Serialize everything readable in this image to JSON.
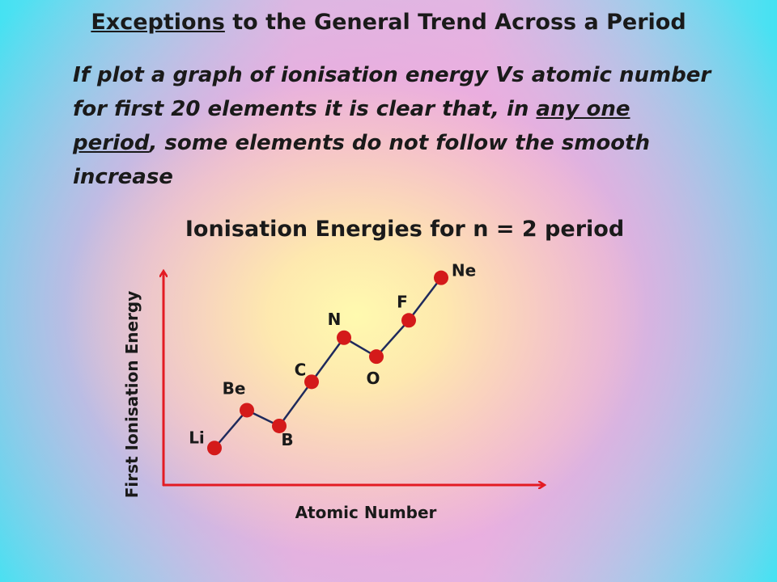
{
  "header": {
    "title_underlined": "Exceptions",
    "title_rest": " to the General Trend Across a Period"
  },
  "intro": {
    "line1": "If plot a graph of ionisation energy Vs atomic number for first 20 elements it is clear that, in ",
    "underlined": "any one period",
    "line2": ", some elements do not follow the smooth increase"
  },
  "chart_data": {
    "type": "line",
    "title": "Ionisation Energies for n = 2 period",
    "xlabel": "Atomic Number",
    "ylabel": "First Ionisation Energy",
    "grid": false,
    "ticks": false,
    "categories": [
      "Li",
      "Be",
      "B",
      "C",
      "N",
      "O",
      "F",
      "Ne"
    ],
    "points": [
      {
        "label": "Li",
        "x": 3,
        "y": 0.05
      },
      {
        "label": "Be",
        "x": 4,
        "y": 0.29
      },
      {
        "label": "B",
        "x": 5,
        "y": 0.19
      },
      {
        "label": "C",
        "x": 6,
        "y": 0.47
      },
      {
        "label": "N",
        "x": 7,
        "y": 0.75
      },
      {
        "label": "O",
        "x": 8,
        "y": 0.63
      },
      {
        "label": "F",
        "x": 9,
        "y": 0.86
      },
      {
        "label": "Ne",
        "x": 10,
        "y": 1.13
      }
    ],
    "colors": {
      "axis": "#e31b23",
      "line": "#1f2a5c",
      "marker": "#d41a1a"
    }
  }
}
